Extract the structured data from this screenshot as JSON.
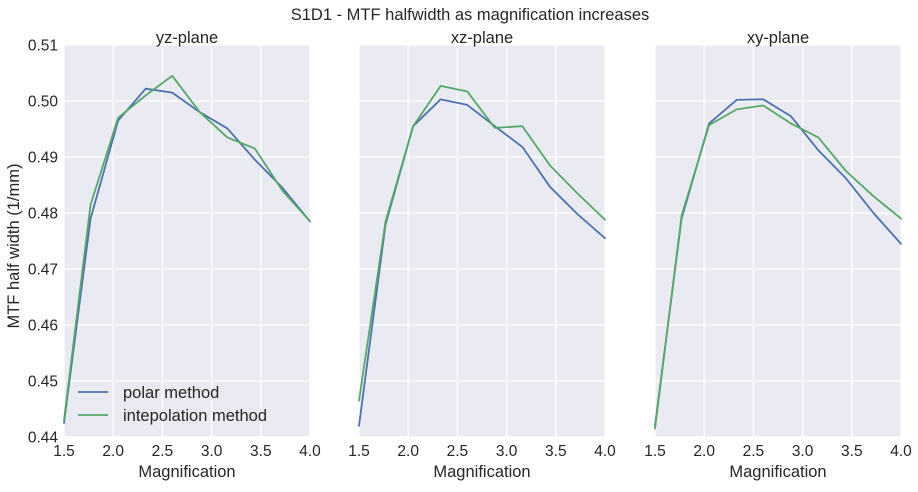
{
  "chart_data": {
    "type": "line",
    "title": "S1D1 - MTF halfwidth as magnification increases",
    "ylabel": "MTF half width (1/mm)",
    "ylim": [
      0.44,
      0.51
    ],
    "yticks": [
      "0.44",
      "0.45",
      "0.46",
      "0.47",
      "0.48",
      "0.49",
      "0.50",
      "0.51"
    ],
    "xlim": [
      1.5,
      4.0
    ],
    "xticks": [
      "1.5",
      "2.0",
      "2.5",
      "3.0",
      "3.5",
      "4.0"
    ],
    "grid": true,
    "legend_position": "lower-left",
    "series_names": [
      "polar method",
      "intepolation method"
    ],
    "colors": {
      "polar": "#4c72b0",
      "interp": "#55a868"
    },
    "panels": [
      {
        "title": "yz-plane",
        "xlabel": "Magnification",
        "x": [
          1.5,
          1.77,
          2.05,
          2.33,
          2.6,
          2.88,
          3.16,
          3.44,
          3.72,
          4.0
        ],
        "series": [
          {
            "name": "polar method",
            "values": [
              0.4425,
              0.479,
              0.4965,
              0.5022,
              0.5015,
              0.498,
              0.4951,
              0.4895,
              0.4845,
              0.4785
            ]
          },
          {
            "name": "intepolation method",
            "values": [
              0.443,
              0.4815,
              0.497,
              0.501,
              0.5045,
              0.498,
              0.4935,
              0.4915,
              0.484,
              0.4785
            ]
          }
        ]
      },
      {
        "title": "xz-plane",
        "xlabel": "Magnification",
        "x": [
          1.5,
          1.77,
          2.05,
          2.33,
          2.6,
          2.88,
          3.16,
          3.44,
          3.72,
          4.0
        ],
        "series": [
          {
            "name": "polar method",
            "values": [
              0.442,
              0.478,
              0.4955,
              0.5003,
              0.4993,
              0.4955,
              0.4918,
              0.4847,
              0.4798,
              0.4755
            ]
          },
          {
            "name": "intepolation method",
            "values": [
              0.4465,
              0.4785,
              0.4955,
              0.5027,
              0.5017,
              0.4952,
              0.4955,
              0.4885,
              0.4835,
              0.4788
            ]
          }
        ]
      },
      {
        "title": "xy-plane",
        "xlabel": "Magnification",
        "x": [
          1.5,
          1.77,
          2.05,
          2.33,
          2.6,
          2.88,
          3.16,
          3.44,
          3.72,
          4.0
        ],
        "series": [
          {
            "name": "polar method",
            "values": [
              0.442,
              0.479,
              0.496,
              0.5002,
              0.5003,
              0.4973,
              0.4912,
              0.4862,
              0.48,
              0.4745
            ]
          },
          {
            "name": "intepolation method",
            "values": [
              0.4415,
              0.4795,
              0.4957,
              0.4985,
              0.4992,
              0.496,
              0.4935,
              0.4875,
              0.483,
              0.479
            ]
          }
        ]
      }
    ]
  }
}
